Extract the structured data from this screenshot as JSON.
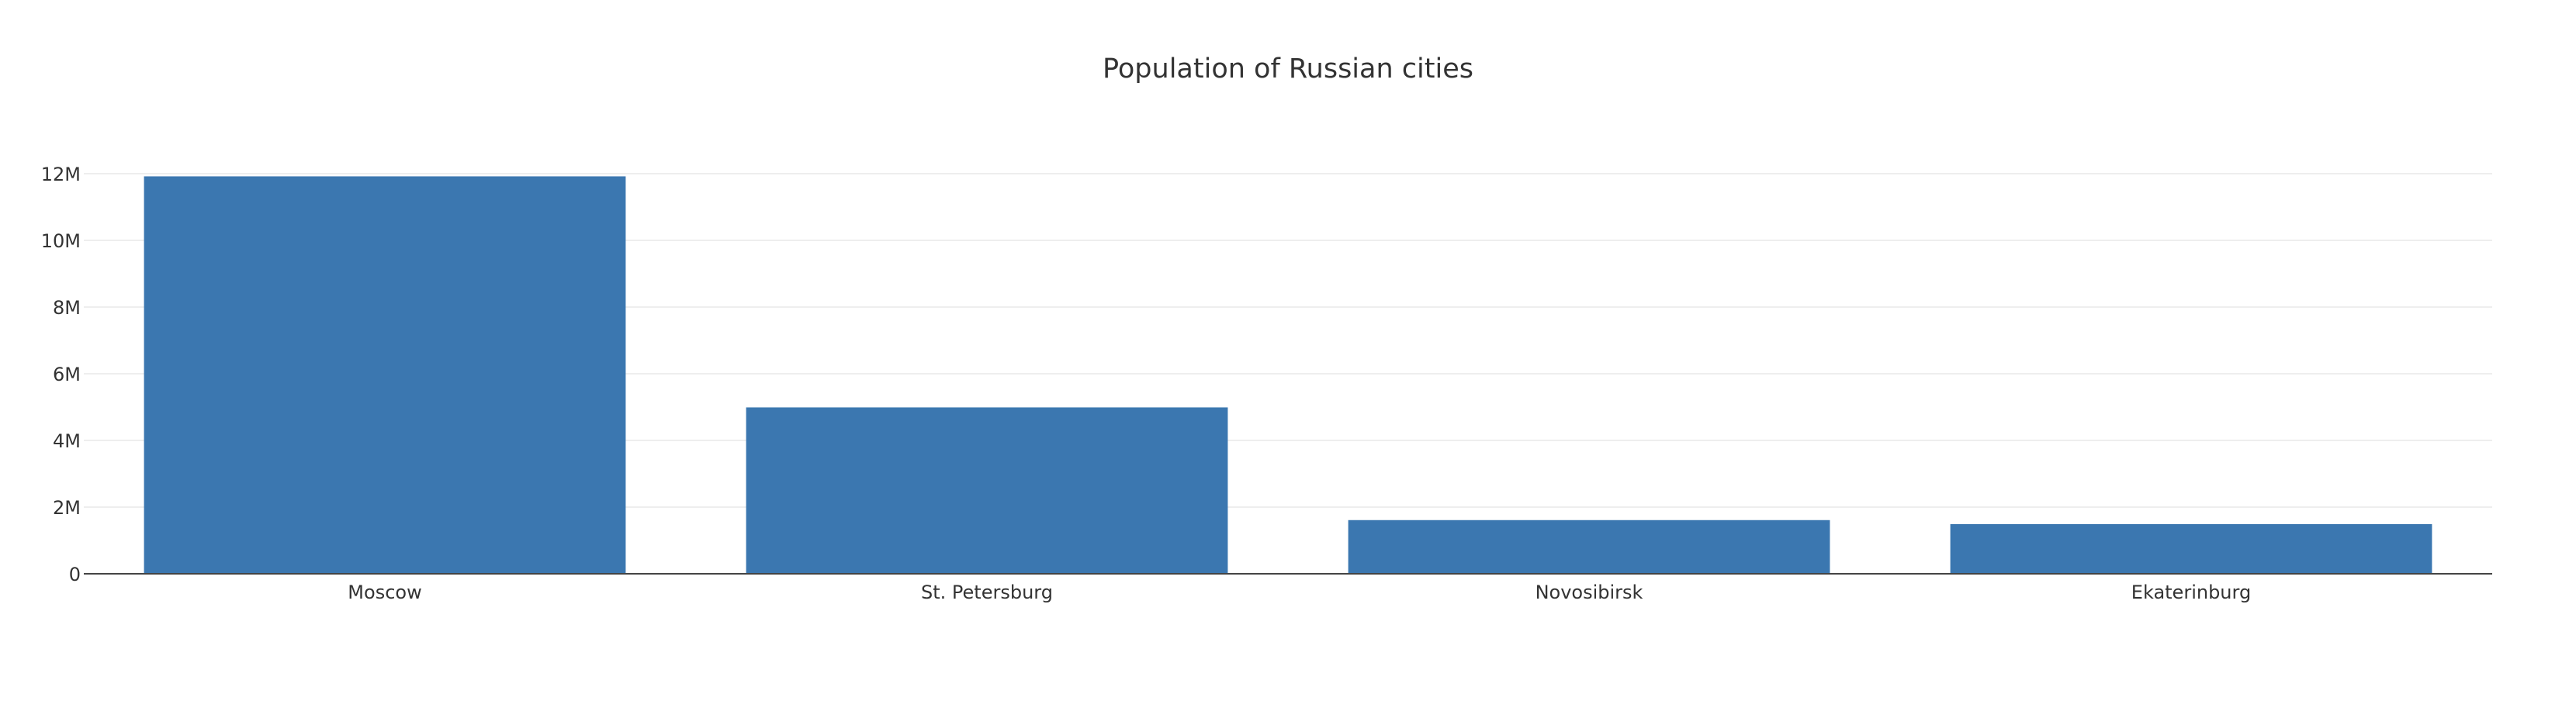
{
  "chart_data": {
    "type": "bar",
    "title": "Population of Russian cities",
    "categories": [
      "Moscow",
      "St. Petersburg",
      "Novosibirsk",
      "Ekaterinburg"
    ],
    "values": [
      11920000,
      4990000,
      1610000,
      1490000
    ],
    "ylim": [
      0,
      12000000
    ],
    "yticks": [
      0,
      2000000,
      4000000,
      6000000,
      8000000,
      10000000,
      12000000
    ],
    "ytick_labels": [
      "0",
      "2M",
      "4M",
      "6M",
      "8M",
      "10M",
      "12M"
    ],
    "xlabel": "",
    "ylabel": "",
    "grid": true,
    "colors": {
      "bar": "#3b77b0",
      "grid": "#eeeeee",
      "axis": "#444444",
      "text": "#333333"
    }
  }
}
